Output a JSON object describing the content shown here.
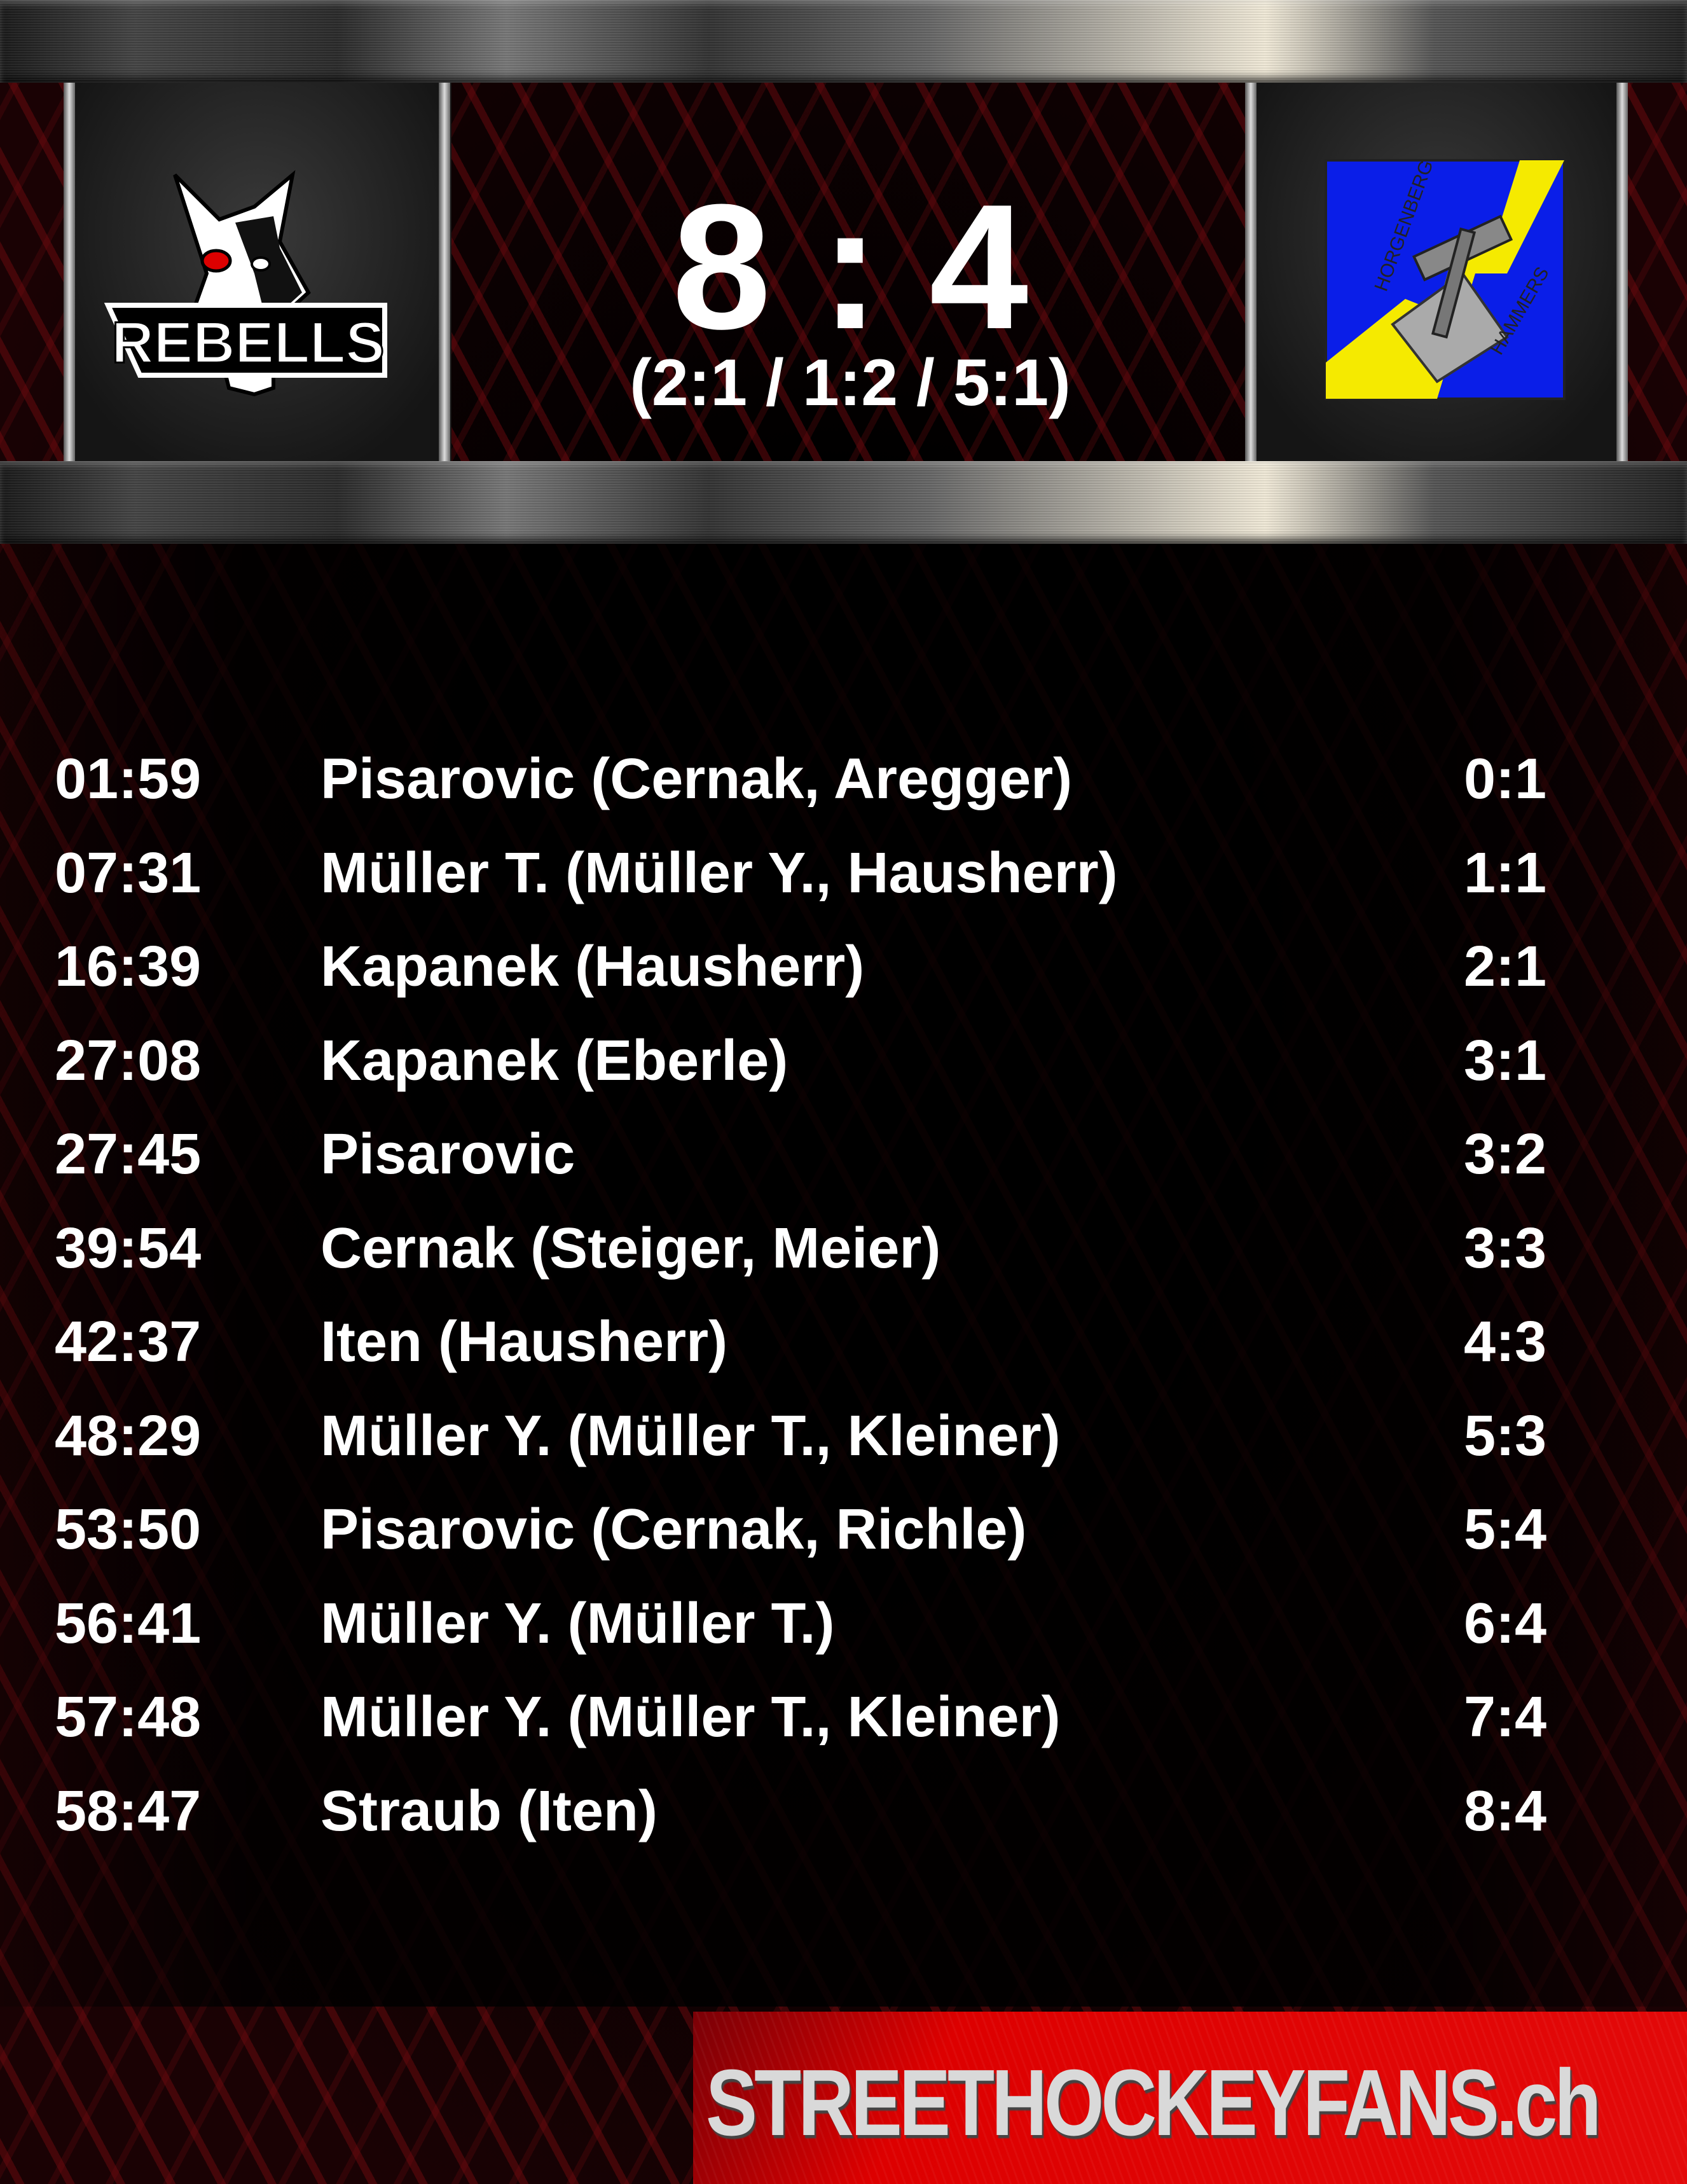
{
  "header": {
    "home_team": "REBELLS",
    "away_team": "HORGENBERG HAMMERS",
    "score": "8 : 4",
    "periods": "(2:1 / 1:2 / 5:1)"
  },
  "goals": [
    {
      "time": "01:59",
      "scorer": "Pisarovic (Cernak, Aregger)",
      "score": "0:1"
    },
    {
      "time": "07:31",
      "scorer": "Müller T. (Müller Y., Hausherr)",
      "score": "1:1"
    },
    {
      "time": "16:39",
      "scorer": "Kapanek (Hausherr)",
      "score": "2:1"
    },
    {
      "time": "27:08",
      "scorer": "Kapanek (Eberle)",
      "score": "3:1"
    },
    {
      "time": "27:45",
      "scorer": "Pisarovic",
      "score": "3:2"
    },
    {
      "time": "39:54",
      "scorer": "Cernak (Steiger, Meier)",
      "score": "3:3"
    },
    {
      "time": "42:37",
      "scorer": "Iten (Hausherr)",
      "score": "4:3"
    },
    {
      "time": "48:29",
      "scorer": "Müller Y. (Müller T., Kleiner)",
      "score": "5:3"
    },
    {
      "time": "53:50",
      "scorer": "Pisarovic (Cernak, Richle)",
      "score": "5:4"
    },
    {
      "time": "56:41",
      "scorer": "Müller Y. (Müller T.)",
      "score": "6:4"
    },
    {
      "time": "57:48",
      "scorer": "Müller Y. (Müller T., Kleiner)",
      "score": "7:4"
    },
    {
      "time": "58:47",
      "scorer": "Straub (Iten)",
      "score": "8:4"
    }
  ],
  "footer": {
    "brand": "STREETHOCKEYFANS.ch"
  },
  "colors": {
    "accent_red": "#e30a0a",
    "away_blue": "#0a1ee8",
    "away_yellow": "#f5ea00"
  }
}
